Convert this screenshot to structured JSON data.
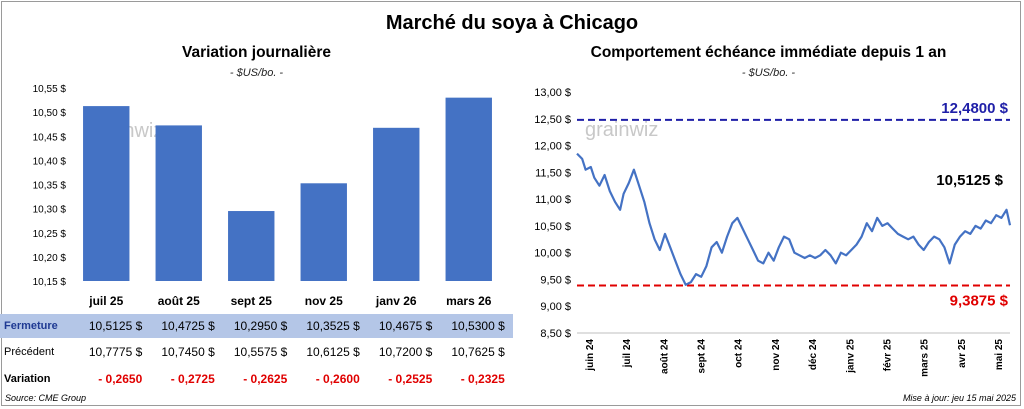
{
  "title": "Marché du soya à Chicago",
  "left": {
    "title": "Variation journalière",
    "unit": "- $US/bo. -",
    "chart_data": {
      "type": "bar",
      "categories": [
        "juil 25",
        "août 25",
        "sept 25",
        "nov 25",
        "janv 26",
        "mars 26"
      ],
      "values": [
        10.5125,
        10.4725,
        10.295,
        10.3525,
        10.4675,
        10.53
      ],
      "ylim": [
        10.15,
        10.55
      ],
      "yticks": [
        "10,15 $",
        "10,20 $",
        "10,25 $",
        "10,30 $",
        "10,35 $",
        "10,40 $",
        "10,45 $",
        "10,50 $",
        "10,55 $"
      ],
      "bar_color": "#4472c4",
      "watermark": "grainwiz"
    },
    "table": {
      "close_label": "Fermeture",
      "close": [
        "10,5125  $",
        "10,4725  $",
        "10,2950  $",
        "10,3525  $",
        "10,4675  $",
        "10,5300  $"
      ],
      "prev_label": "Précédent",
      "prev": [
        "10,7775  $",
        "10,7450  $",
        "10,5575  $",
        "10,6125  $",
        "10,7200  $",
        "10,7625  $"
      ],
      "var_label": "Variation",
      "var": [
        "- 0,2650",
        "- 0,2725",
        "- 0,2625",
        "- 0,2600",
        "- 0,2525",
        "- 0,2325"
      ]
    }
  },
  "right": {
    "title": "Comportement  échéance immédiate depuis 1 an",
    "unit": "- $US/bo. -",
    "chart_data": {
      "type": "line",
      "ylim": [
        8.5,
        13.0
      ],
      "yticks": [
        "8,50 $",
        "9,00 $",
        "9,50 $",
        "10,00 $",
        "10,50 $",
        "11,00 $",
        "11,50 $",
        "12,00 $",
        "12,50 $",
        "13,00 $"
      ],
      "xticks": [
        "juin 24",
        "juil 24",
        "août 24",
        "sept 24",
        "oct 24",
        "nov 24",
        "déc 24",
        "janv 25",
        "févr 25",
        "mars 25",
        "avr 25",
        "mai 25"
      ],
      "high": {
        "value": 12.48,
        "label": "12,4800 $",
        "color": "#1f1fa8"
      },
      "low": {
        "value": 9.3875,
        "label": "9,3875 $",
        "color": "#e00000"
      },
      "last": {
        "value": 10.5125,
        "label": "10,5125 $"
      },
      "line_color": "#4472c4",
      "watermark": "grainwiz",
      "series": [
        {
          "x": 0,
          "y": 11.85
        },
        {
          "x": 3,
          "y": 11.75
        },
        {
          "x": 5,
          "y": 11.55
        },
        {
          "x": 8,
          "y": 11.6
        },
        {
          "x": 10,
          "y": 11.4
        },
        {
          "x": 13,
          "y": 11.25
        },
        {
          "x": 16,
          "y": 11.45
        },
        {
          "x": 19,
          "y": 11.15
        },
        {
          "x": 22,
          "y": 10.95
        },
        {
          "x": 25,
          "y": 10.8
        },
        {
          "x": 27,
          "y": 11.1
        },
        {
          "x": 30,
          "y": 11.3
        },
        {
          "x": 33,
          "y": 11.55
        },
        {
          "x": 36,
          "y": 11.25
        },
        {
          "x": 39,
          "y": 10.95
        },
        {
          "x": 42,
          "y": 10.55
        },
        {
          "x": 45,
          "y": 10.25
        },
        {
          "x": 48,
          "y": 10.05
        },
        {
          "x": 51,
          "y": 10.35
        },
        {
          "x": 54,
          "y": 10.1
        },
        {
          "x": 57,
          "y": 9.85
        },
        {
          "x": 60,
          "y": 9.6
        },
        {
          "x": 63,
          "y": 9.4
        },
        {
          "x": 66,
          "y": 9.45
        },
        {
          "x": 69,
          "y": 9.6
        },
        {
          "x": 72,
          "y": 9.55
        },
        {
          "x": 75,
          "y": 9.75
        },
        {
          "x": 78,
          "y": 10.1
        },
        {
          "x": 81,
          "y": 10.2
        },
        {
          "x": 84,
          "y": 10.0
        },
        {
          "x": 87,
          "y": 10.3
        },
        {
          "x": 90,
          "y": 10.55
        },
        {
          "x": 93,
          "y": 10.65
        },
        {
          "x": 96,
          "y": 10.45
        },
        {
          "x": 99,
          "y": 10.25
        },
        {
          "x": 102,
          "y": 10.05
        },
        {
          "x": 105,
          "y": 9.85
        },
        {
          "x": 108,
          "y": 9.8
        },
        {
          "x": 111,
          "y": 10.0
        },
        {
          "x": 114,
          "y": 9.85
        },
        {
          "x": 117,
          "y": 10.1
        },
        {
          "x": 120,
          "y": 10.3
        },
        {
          "x": 123,
          "y": 10.25
        },
        {
          "x": 126,
          "y": 10.0
        },
        {
          "x": 129,
          "y": 9.95
        },
        {
          "x": 132,
          "y": 9.9
        },
        {
          "x": 135,
          "y": 9.95
        },
        {
          "x": 138,
          "y": 9.9
        },
        {
          "x": 141,
          "y": 9.95
        },
        {
          "x": 144,
          "y": 10.05
        },
        {
          "x": 147,
          "y": 9.95
        },
        {
          "x": 150,
          "y": 9.8
        },
        {
          "x": 153,
          "y": 10.0
        },
        {
          "x": 156,
          "y": 9.95
        },
        {
          "x": 159,
          "y": 10.05
        },
        {
          "x": 162,
          "y": 10.15
        },
        {
          "x": 165,
          "y": 10.3
        },
        {
          "x": 168,
          "y": 10.55
        },
        {
          "x": 171,
          "y": 10.4
        },
        {
          "x": 174,
          "y": 10.65
        },
        {
          "x": 177,
          "y": 10.5
        },
        {
          "x": 180,
          "y": 10.55
        },
        {
          "x": 183,
          "y": 10.45
        },
        {
          "x": 186,
          "y": 10.35
        },
        {
          "x": 189,
          "y": 10.3
        },
        {
          "x": 192,
          "y": 10.25
        },
        {
          "x": 195,
          "y": 10.3
        },
        {
          "x": 198,
          "y": 10.15
        },
        {
          "x": 201,
          "y": 10.05
        },
        {
          "x": 204,
          "y": 10.2
        },
        {
          "x": 207,
          "y": 10.3
        },
        {
          "x": 210,
          "y": 10.25
        },
        {
          "x": 213,
          "y": 10.1
        },
        {
          "x": 216,
          "y": 9.8
        },
        {
          "x": 219,
          "y": 10.15
        },
        {
          "x": 222,
          "y": 10.3
        },
        {
          "x": 225,
          "y": 10.4
        },
        {
          "x": 228,
          "y": 10.35
        },
        {
          "x": 231,
          "y": 10.5
        },
        {
          "x": 234,
          "y": 10.45
        },
        {
          "x": 237,
          "y": 10.6
        },
        {
          "x": 240,
          "y": 10.55
        },
        {
          "x": 243,
          "y": 10.7
        },
        {
          "x": 246,
          "y": 10.65
        },
        {
          "x": 249,
          "y": 10.8
        },
        {
          "x": 251,
          "y": 10.5125
        }
      ],
      "x_range": [
        0,
        251
      ]
    }
  },
  "footer": {
    "source": "Source: CME Group",
    "update": "Mise à jour: jeu 15 mai 2025"
  }
}
